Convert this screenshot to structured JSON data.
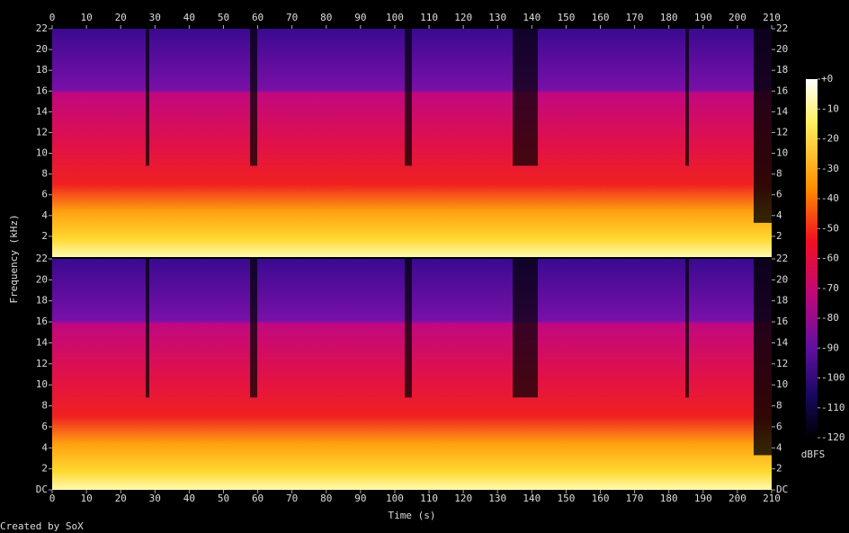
{
  "chart_data": {
    "type": "spectrogram",
    "xlabel": "Time (s)",
    "ylabel": "Frequency (kHz)",
    "xlim": [
      0,
      210
    ],
    "xticks": [
      0,
      10,
      20,
      30,
      40,
      50,
      60,
      70,
      80,
      90,
      100,
      110,
      120,
      130,
      140,
      150,
      160,
      170,
      180,
      190,
      200,
      210
    ],
    "ylim": [
      0,
      22
    ],
    "channels": [
      {
        "yticks": [
          2,
          4,
          6,
          8,
          10,
          12,
          14,
          16,
          18,
          20,
          22
        ]
      },
      {
        "yticks": [
          {
            "value": 0,
            "label": "DC"
          },
          2,
          4,
          6,
          8,
          10,
          12,
          14,
          16,
          18,
          20,
          22
        ]
      }
    ],
    "colorbar": {
      "label": "dBFS",
      "lim": [
        -120,
        0
      ],
      "ticks": [
        {
          "value": 0,
          "label": "+0"
        },
        -10,
        -20,
        -30,
        -40,
        -50,
        -60,
        -70,
        -80,
        -90,
        -100,
        -110,
        -120
      ]
    },
    "footer": "Created by SoX"
  }
}
